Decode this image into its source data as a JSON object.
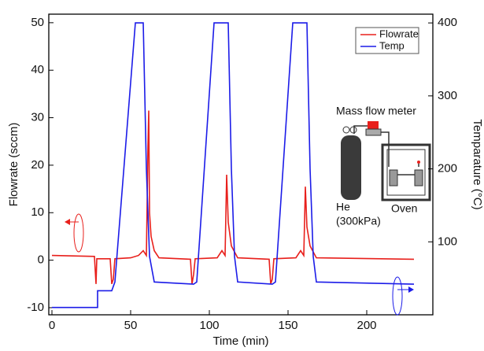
{
  "chart_data": {
    "type": "line",
    "xlabel": "Time (min)",
    "ylabel": "Flowrate (sccm)",
    "y2label": "Temparature (°C)",
    "xlim": [
      -2,
      242
    ],
    "xticks": [
      0,
      50,
      100,
      150,
      200
    ],
    "ylim": [
      -11.5,
      51.8
    ],
    "yticks": [
      -10,
      0,
      10,
      20,
      30,
      40,
      50
    ],
    "y2lim": [
      0,
      412
    ],
    "y2ticks": [
      100,
      200,
      300,
      400
    ],
    "legend": "upper right",
    "annotations": [
      "Mass flow meter",
      "He",
      "(300kPa)",
      "Oven"
    ],
    "series": [
      {
        "name": "Flowrate",
        "color": "#e8201c",
        "axis": "y",
        "x": [
          0,
          27,
          28,
          28.5,
          37,
          38,
          39,
          40,
          50,
          55,
          58,
          60,
          61,
          61.5,
          62,
          63,
          65,
          68,
          88,
          89,
          90,
          91,
          105,
          108,
          110,
          111,
          112,
          114,
          118,
          138,
          139,
          140,
          141,
          155,
          158,
          160,
          161,
          162,
          164,
          168,
          230
        ],
        "values": [
          1,
          0.8,
          -5,
          0.3,
          0.3,
          -5,
          -4,
          0.3,
          0.5,
          1,
          2,
          1,
          24,
          31.5,
          10,
          5,
          2,
          0.5,
          0.2,
          -5,
          -3,
          0.3,
          0.5,
          2,
          1,
          18,
          8,
          3,
          0.5,
          0.2,
          -5,
          -4,
          0.3,
          0.5,
          2,
          1,
          15.5,
          7,
          3,
          0.5,
          0.2
        ]
      },
      {
        "name": "Temp",
        "color": "#1c1ce8",
        "axis": "y2",
        "x": [
          0,
          29,
          29,
          38,
          40,
          53,
          58,
          60,
          62,
          65,
          90,
          92,
          103,
          112,
          114,
          116,
          118,
          140,
          142,
          153,
          162,
          164,
          166,
          168,
          230
        ],
        "values": [
          10,
          10,
          33,
          33,
          45,
          400,
          400,
          200,
          80,
          45,
          42,
          45,
          400,
          400,
          200,
          80,
          45,
          42,
          45,
          400,
          400,
          200,
          80,
          45,
          42
        ]
      }
    ]
  }
}
